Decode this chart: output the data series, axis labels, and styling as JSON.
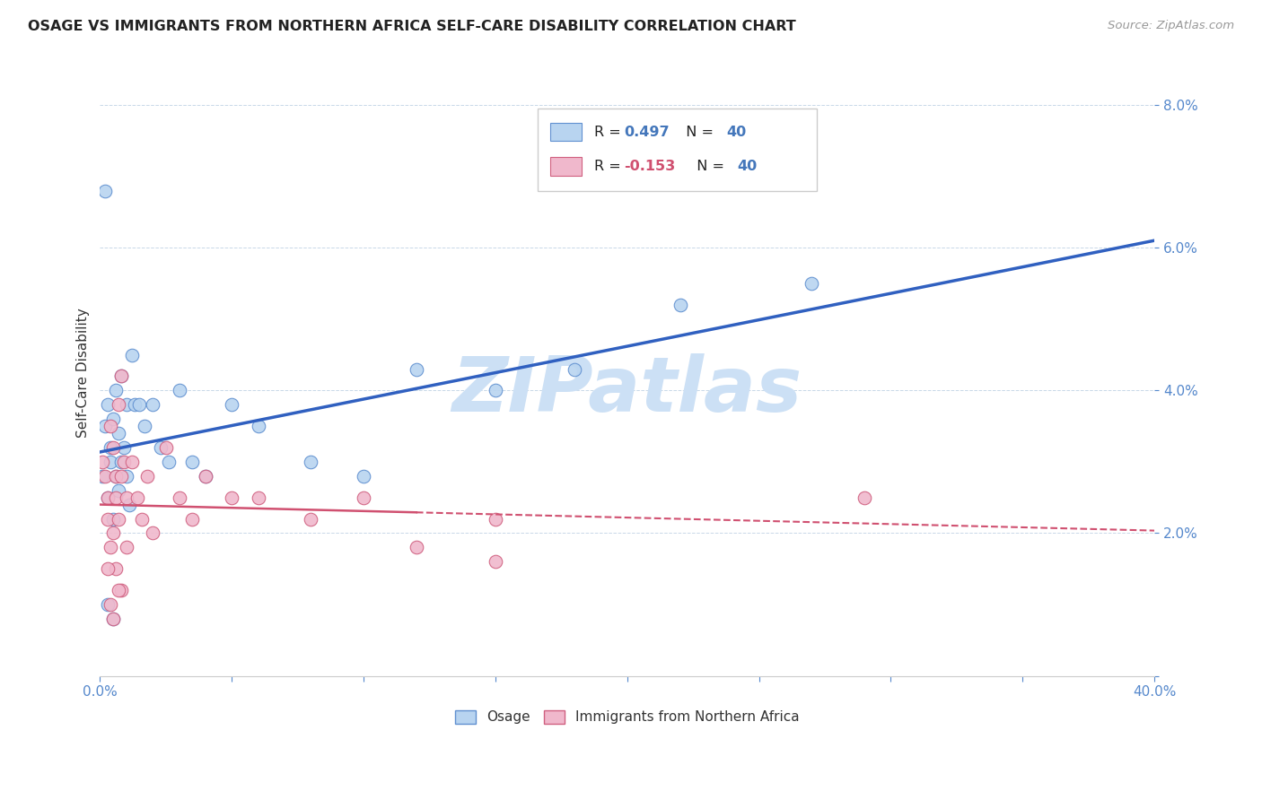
{
  "title": "OSAGE VS IMMIGRANTS FROM NORTHERN AFRICA SELF-CARE DISABILITY CORRELATION CHART",
  "source": "Source: ZipAtlas.com",
  "ylabel": "Self-Care Disability",
  "watermark": "ZIPatlas",
  "legend_blue_r": "R = ",
  "legend_blue_r_val": "0.497",
  "legend_blue_n": "  N = ",
  "legend_blue_n_val": "40",
  "legend_pink_r": "R = ",
  "legend_pink_r_val": "-0.153",
  "legend_pink_n": "  N = ",
  "legend_pink_n_val": "40",
  "legend_label1": "Osage",
  "legend_label2": "Immigrants from Northern Africa",
  "xlim": [
    0.0,
    0.4
  ],
  "ylim": [
    0.0,
    0.085
  ],
  "xtick_positions": [
    0.0,
    0.05,
    0.1,
    0.15,
    0.2,
    0.25,
    0.3,
    0.35,
    0.4
  ],
  "xtick_labeled": [
    0.0,
    0.4
  ],
  "xtick_label_vals": [
    "0.0%",
    "40.0%"
  ],
  "ytick_positions": [
    0.0,
    0.02,
    0.04,
    0.06,
    0.08
  ],
  "ytick_labels": [
    "",
    "2.0%",
    "4.0%",
    "6.0%",
    "8.0%"
  ],
  "blue_scatter_x": [
    0.001,
    0.002,
    0.003,
    0.003,
    0.004,
    0.004,
    0.005,
    0.005,
    0.006,
    0.006,
    0.007,
    0.007,
    0.008,
    0.008,
    0.009,
    0.01,
    0.01,
    0.011,
    0.012,
    0.013,
    0.015,
    0.017,
    0.02,
    0.023,
    0.026,
    0.03,
    0.035,
    0.04,
    0.05,
    0.06,
    0.08,
    0.1,
    0.12,
    0.15,
    0.18,
    0.22,
    0.27,
    0.005,
    0.003,
    0.002
  ],
  "blue_scatter_y": [
    0.028,
    0.035,
    0.038,
    0.025,
    0.032,
    0.03,
    0.036,
    0.022,
    0.04,
    0.028,
    0.034,
    0.026,
    0.042,
    0.03,
    0.032,
    0.028,
    0.038,
    0.024,
    0.045,
    0.038,
    0.038,
    0.035,
    0.038,
    0.032,
    0.03,
    0.04,
    0.03,
    0.028,
    0.038,
    0.035,
    0.03,
    0.028,
    0.043,
    0.04,
    0.043,
    0.052,
    0.055,
    0.008,
    0.01,
    0.068
  ],
  "pink_scatter_x": [
    0.001,
    0.002,
    0.003,
    0.003,
    0.004,
    0.004,
    0.005,
    0.005,
    0.006,
    0.006,
    0.007,
    0.007,
    0.008,
    0.008,
    0.009,
    0.01,
    0.01,
    0.012,
    0.014,
    0.016,
    0.018,
    0.02,
    0.025,
    0.03,
    0.035,
    0.04,
    0.05,
    0.06,
    0.08,
    0.1,
    0.12,
    0.15,
    0.006,
    0.008,
    0.005,
    0.003,
    0.004,
    0.007,
    0.15,
    0.29
  ],
  "pink_scatter_y": [
    0.03,
    0.028,
    0.025,
    0.022,
    0.035,
    0.018,
    0.032,
    0.02,
    0.028,
    0.025,
    0.038,
    0.022,
    0.042,
    0.028,
    0.03,
    0.025,
    0.018,
    0.03,
    0.025,
    0.022,
    0.028,
    0.02,
    0.032,
    0.025,
    0.022,
    0.028,
    0.025,
    0.025,
    0.022,
    0.025,
    0.018,
    0.022,
    0.015,
    0.012,
    0.008,
    0.015,
    0.01,
    0.012,
    0.016,
    0.025
  ],
  "blue_color": "#b8d4f0",
  "pink_color": "#f0b8cc",
  "blue_edge_color": "#6090d0",
  "pink_edge_color": "#d06080",
  "blue_line_color": "#3060c0",
  "pink_line_color": "#d05070",
  "title_color": "#222222",
  "axis_tick_color": "#5588cc",
  "watermark_color": "#cce0f5",
  "grid_color": "#c8d8e8",
  "background_color": "#ffffff",
  "legend_text_color": "#4477bb",
  "legend_r_color": "#4477bb",
  "legend_n_color": "#4477bb"
}
